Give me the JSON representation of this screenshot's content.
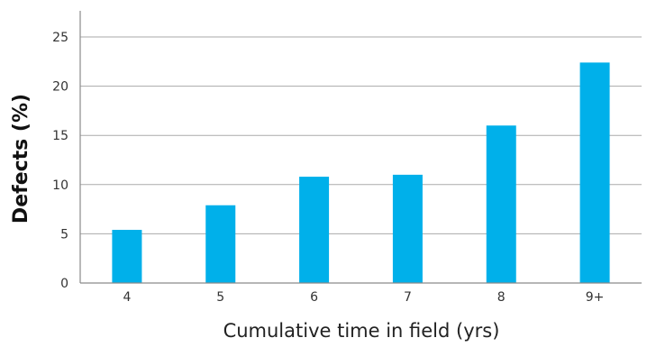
{
  "chart_data": {
    "type": "bar",
    "categories": [
      "4",
      "5",
      "6",
      "7",
      "8",
      "9+"
    ],
    "values": [
      5.4,
      7.9,
      10.8,
      11.0,
      16.0,
      22.4
    ],
    "xlabel": "Cumulative time in field (yrs)",
    "ylabel": "Defects (%)",
    "ylim": [
      0,
      25
    ],
    "yticks": [
      "0",
      "5",
      "10",
      "15",
      "20",
      "25"
    ],
    "grid": true,
    "legend": "none",
    "colors": {
      "bar": "#00b0ea",
      "grid": "#aaaaaa",
      "axis": "#8a8a8a"
    }
  }
}
